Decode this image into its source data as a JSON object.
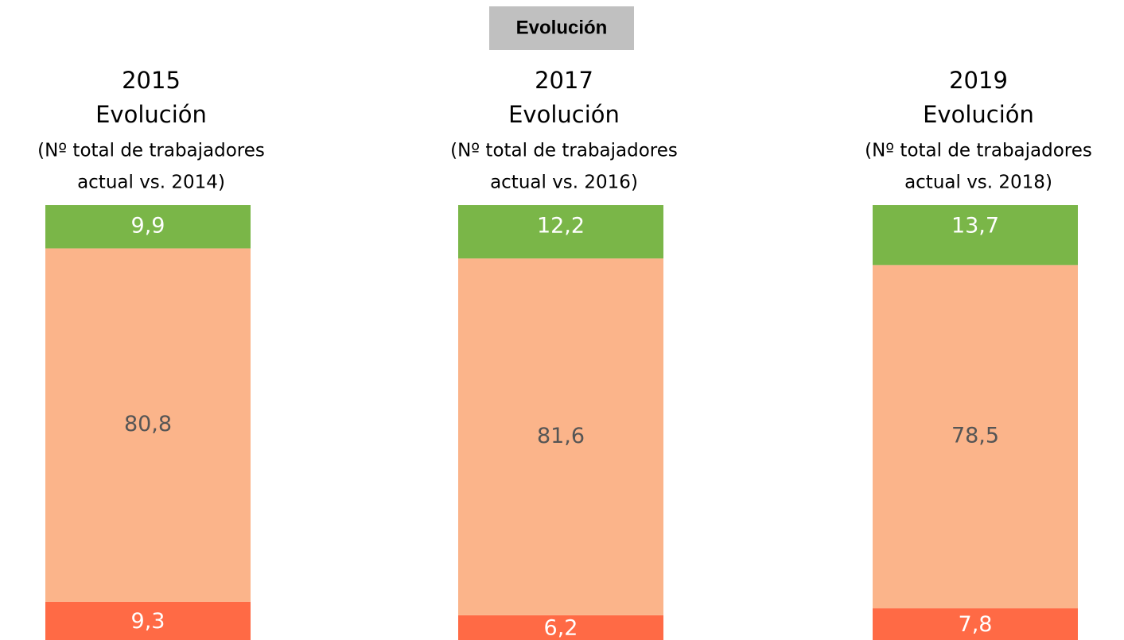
{
  "header": {
    "title": "Evolución"
  },
  "chart_data": [
    {
      "type": "stacked_bar",
      "title": "2015",
      "subtitle": [
        "Evolución",
        "(Nº total de trabajadores",
        "actual vs. 2014)"
      ],
      "ylim": [
        0,
        100
      ],
      "series": [
        {
          "color": "#ff6a45",
          "values": [
            9.3
          ],
          "value_labels": [
            "9,3"
          ],
          "label_color": "#ffffff"
        },
        {
          "color": "#fbb48a",
          "values": [
            80.8
          ],
          "value_labels": [
            "80,8"
          ],
          "label_color": "#555555"
        },
        {
          "color": "#7ab648",
          "values": [
            9.9
          ],
          "value_labels": [
            "9,9"
          ],
          "label_color": "#ffffff"
        }
      ]
    },
    {
      "type": "stacked_bar",
      "title": "2017",
      "subtitle": [
        "Evolución",
        "(Nº total de trabajadores",
        "actual vs. 2016)"
      ],
      "ylim": [
        0,
        100
      ],
      "series": [
        {
          "color": "#ff6a45",
          "values": [
            6.2
          ],
          "value_labels": [
            "6,2"
          ],
          "label_color": "#ffffff"
        },
        {
          "color": "#fbb48a",
          "values": [
            81.6
          ],
          "value_labels": [
            "81,6"
          ],
          "label_color": "#555555"
        },
        {
          "color": "#7ab648",
          "values": [
            12.2
          ],
          "value_labels": [
            "12,2"
          ],
          "label_color": "#ffffff"
        }
      ]
    },
    {
      "type": "stacked_bar",
      "title": "2019",
      "subtitle": [
        "Evolución",
        "(Nº total de trabajadores",
        "actual vs. 2018)"
      ],
      "ylim": [
        0,
        100
      ],
      "series": [
        {
          "color": "#ff6a45",
          "values": [
            7.8
          ],
          "value_labels": [
            "7,8"
          ],
          "label_color": "#ffffff"
        },
        {
          "color": "#fbb48a",
          "values": [
            78.5
          ],
          "value_labels": [
            "78,5"
          ],
          "label_color": "#555555"
        },
        {
          "color": "#7ab648",
          "values": [
            13.7
          ],
          "value_labels": [
            "13,7"
          ],
          "label_color": "#ffffff"
        }
      ]
    }
  ]
}
